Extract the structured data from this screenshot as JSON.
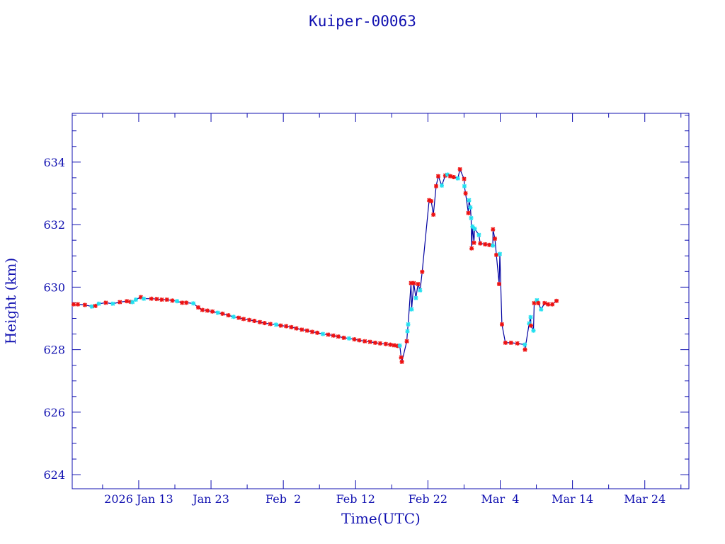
{
  "chart_data": {
    "type": "scatter",
    "title": "Kuiper-00063",
    "xlabel": "Time(UTC)",
    "ylabel": "Height (km)",
    "x_unit": "day of 2026 (0 = Jan 1)",
    "xlim": [
      2.8,
      88.1
    ],
    "ylim": [
      623.55,
      635.56
    ],
    "grid": false,
    "x_ticks": [
      {
        "value": 12,
        "label": "2026 Jan 13"
      },
      {
        "value": 22,
        "label": "Jan 23"
      },
      {
        "value": 32,
        "label": "Feb  2"
      },
      {
        "value": 42,
        "label": "Feb 12"
      },
      {
        "value": 52,
        "label": "Feb 22"
      },
      {
        "value": 62,
        "label": "Mar  4"
      },
      {
        "value": 72,
        "label": "Mar 14"
      },
      {
        "value": 82,
        "label": "Mar 24"
      }
    ],
    "y_ticks": [
      {
        "value": 624,
        "label": "624"
      },
      {
        "value": 626,
        "label": "626"
      },
      {
        "value": 628,
        "label": "628"
      },
      {
        "value": 630,
        "label": "630"
      },
      {
        "value": 632,
        "label": "632"
      },
      {
        "value": 634,
        "label": "634"
      }
    ],
    "colors": {
      "axis": "#1010b0",
      "line": "#0000a0",
      "red": "#ee1111",
      "cyan": "#22e0f0"
    },
    "series": [
      {
        "name": "height",
        "points": [
          [
            3.0,
            629.45,
            "r"
          ],
          [
            3.58,
            629.45,
            "r"
          ],
          [
            4.55,
            629.43,
            "r"
          ],
          [
            5.51,
            629.38,
            "c"
          ],
          [
            6.0,
            629.4,
            "r"
          ],
          [
            6.48,
            629.47,
            "c"
          ],
          [
            7.45,
            629.5,
            "r"
          ],
          [
            8.42,
            629.47,
            "c"
          ],
          [
            9.39,
            629.52,
            "r"
          ],
          [
            10.35,
            629.55,
            "r"
          ],
          [
            10.9,
            629.53,
            "r"
          ],
          [
            11.13,
            629.52,
            "c"
          ],
          [
            11.6,
            629.6,
            "c"
          ],
          [
            12.29,
            629.68,
            "r"
          ],
          [
            12.7,
            629.63,
            "c"
          ],
          [
            13.74,
            629.63,
            "r"
          ],
          [
            14.5,
            629.62,
            "r"
          ],
          [
            15.19,
            629.6,
            "r"
          ],
          [
            15.9,
            629.6,
            "r"
          ],
          [
            16.65,
            629.57,
            "r"
          ],
          [
            17.3,
            629.55,
            "c"
          ],
          [
            18.0,
            629.5,
            "r"
          ],
          [
            18.58,
            629.5,
            "r"
          ],
          [
            19.55,
            629.48,
            "c"
          ],
          [
            20.23,
            629.35,
            "r"
          ],
          [
            20.8,
            629.27,
            "r"
          ],
          [
            21.49,
            629.25,
            "r"
          ],
          [
            22.2,
            629.22,
            "r"
          ],
          [
            22.94,
            629.18,
            "c"
          ],
          [
            23.6,
            629.15,
            "r"
          ],
          [
            24.39,
            629.1,
            "r"
          ],
          [
            25.1,
            629.05,
            "c"
          ],
          [
            25.84,
            629.02,
            "r"
          ],
          [
            26.5,
            628.98,
            "r"
          ],
          [
            27.3,
            628.95,
            "r"
          ],
          [
            28.0,
            628.92,
            "r"
          ],
          [
            28.75,
            628.88,
            "r"
          ],
          [
            29.4,
            628.85,
            "r"
          ],
          [
            30.2,
            628.82,
            "r"
          ],
          [
            31.0,
            628.8,
            "c"
          ],
          [
            31.65,
            628.77,
            "r"
          ],
          [
            32.4,
            628.75,
            "r"
          ],
          [
            33.1,
            628.72,
            "r"
          ],
          [
            33.8,
            628.68,
            "r"
          ],
          [
            34.56,
            628.64,
            "r"
          ],
          [
            35.3,
            628.61,
            "r"
          ],
          [
            36.0,
            628.57,
            "r"
          ],
          [
            36.7,
            628.54,
            "r"
          ],
          [
            37.47,
            628.5,
            "c"
          ],
          [
            38.2,
            628.48,
            "r"
          ],
          [
            38.92,
            628.45,
            "r"
          ],
          [
            39.6,
            628.42,
            "r"
          ],
          [
            40.37,
            628.38,
            "r"
          ],
          [
            41.1,
            628.36,
            "c"
          ],
          [
            41.82,
            628.33,
            "r"
          ],
          [
            42.5,
            628.3,
            "r"
          ],
          [
            43.27,
            628.27,
            "r"
          ],
          [
            44.0,
            628.25,
            "r"
          ],
          [
            44.72,
            628.22,
            "r"
          ],
          [
            45.4,
            628.2,
            "r"
          ],
          [
            46.17,
            628.18,
            "r"
          ],
          [
            46.8,
            628.16,
            "r"
          ],
          [
            47.33,
            628.14,
            "r"
          ],
          [
            47.82,
            628.12,
            "r"
          ],
          [
            48.11,
            628.13,
            "c"
          ],
          [
            48.3,
            627.75,
            "r"
          ],
          [
            48.4,
            627.61,
            "r"
          ],
          [
            49.08,
            628.27,
            "r"
          ],
          [
            49.17,
            628.59,
            "c"
          ],
          [
            49.27,
            628.81,
            "c"
          ],
          [
            49.66,
            630.13,
            "r"
          ],
          [
            49.75,
            629.29,
            "c"
          ],
          [
            50.04,
            630.13,
            "r"
          ],
          [
            50.34,
            629.65,
            "c"
          ],
          [
            50.63,
            630.1,
            "r"
          ],
          [
            50.92,
            629.9,
            "c"
          ],
          [
            51.21,
            630.49,
            "r"
          ],
          [
            52.17,
            632.78,
            "r"
          ],
          [
            52.46,
            632.75,
            "r"
          ],
          [
            52.76,
            632.32,
            "r"
          ],
          [
            53.14,
            633.23,
            "r"
          ],
          [
            53.43,
            633.55,
            "r"
          ],
          [
            53.92,
            633.25,
            "c"
          ],
          [
            54.4,
            633.57,
            "r"
          ],
          [
            54.69,
            633.6,
            "c"
          ],
          [
            55.1,
            633.55,
            "r"
          ],
          [
            55.56,
            633.52,
            "r"
          ],
          [
            56.14,
            633.48,
            "c"
          ],
          [
            56.43,
            633.77,
            "r"
          ],
          [
            57.01,
            633.46,
            "r"
          ],
          [
            57.05,
            633.23,
            "c"
          ],
          [
            57.21,
            633.0,
            "r"
          ],
          [
            57.59,
            632.37,
            "r"
          ],
          [
            57.69,
            632.78,
            "c"
          ],
          [
            57.88,
            632.55,
            "c"
          ],
          [
            57.98,
            632.21,
            "c"
          ],
          [
            58.05,
            631.24,
            "r"
          ],
          [
            58.17,
            631.94,
            "c"
          ],
          [
            58.37,
            631.42,
            "r"
          ],
          [
            58.47,
            631.87,
            "c"
          ],
          [
            59.05,
            631.67,
            "c"
          ],
          [
            59.24,
            631.4,
            "r"
          ],
          [
            59.92,
            631.37,
            "r"
          ],
          [
            60.5,
            631.35,
            "r"
          ],
          [
            60.98,
            631.33,
            "c"
          ],
          [
            61.0,
            631.85,
            "r"
          ],
          [
            61.27,
            631.55,
            "r"
          ],
          [
            61.47,
            631.03,
            "r"
          ],
          [
            61.85,
            630.1,
            "r"
          ],
          [
            61.95,
            631.06,
            "c"
          ],
          [
            62.24,
            628.81,
            "r"
          ],
          [
            62.72,
            628.22,
            "r"
          ],
          [
            63.5,
            628.22,
            "r"
          ],
          [
            64.37,
            628.2,
            "r"
          ],
          [
            65.4,
            628.16,
            "c"
          ],
          [
            65.43,
            628.0,
            "r"
          ],
          [
            66.01,
            628.84,
            "c"
          ],
          [
            66.21,
            629.04,
            "c"
          ],
          [
            66.25,
            628.77,
            "r"
          ],
          [
            66.6,
            628.61,
            "c"
          ],
          [
            66.7,
            629.49,
            "r"
          ],
          [
            67.08,
            629.58,
            "c"
          ],
          [
            67.27,
            629.49,
            "r"
          ],
          [
            67.66,
            629.29,
            "c"
          ],
          [
            68.15,
            629.49,
            "r"
          ],
          [
            68.63,
            629.45,
            "r"
          ],
          [
            69.21,
            629.45,
            "r"
          ],
          [
            69.79,
            629.56,
            "r"
          ]
        ]
      }
    ]
  }
}
